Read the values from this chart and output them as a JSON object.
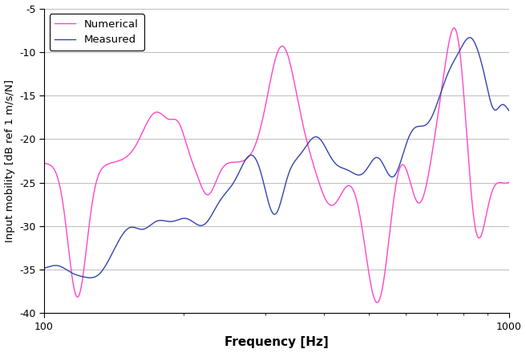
{
  "title": "",
  "xlabel": "Frequency [Hz]",
  "ylabel": "Input mobility [dB ref 1 m/s/N]",
  "xlim": [
    100,
    1000
  ],
  "ylim": [
    -40,
    -5
  ],
  "yticks": [
    -40,
    -35,
    -30,
    -25,
    -20,
    -15,
    -10,
    -5
  ],
  "legend_measured": "Measured",
  "legend_numerical": "Numerical",
  "measured_color": "#3344aa",
  "numerical_color": "#ff44cc",
  "measured_linewidth": 1.0,
  "numerical_linewidth": 1.0,
  "background_color": "#ffffff",
  "grid_color": "#bbbbbb"
}
